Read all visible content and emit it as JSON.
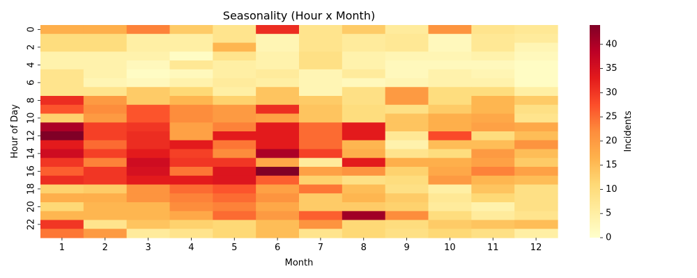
{
  "chart_data": {
    "type": "heatmap",
    "title": "Seasonality (Hour x Month)",
    "xlabel": "Month",
    "ylabel": "Hour of Day",
    "colorbar_label": "Incidents",
    "x": [
      "1",
      "2",
      "3",
      "4",
      "5",
      "6",
      "7",
      "8",
      "9",
      "10",
      "11",
      "12"
    ],
    "y": [
      "0",
      "1",
      "2",
      "3",
      "4",
      "5",
      "6",
      "7",
      "8",
      "9",
      "10",
      "11",
      "12",
      "13",
      "14",
      "15",
      "16",
      "17",
      "18",
      "19",
      "20",
      "21",
      "22",
      "23"
    ],
    "y_tick_labels": [
      "0",
      "2",
      "4",
      "6",
      "8",
      "10",
      "12",
      "14",
      "16",
      "18",
      "20",
      "22"
    ],
    "colorbar_ticks": [
      "0",
      "5",
      "10",
      "15",
      "20",
      "25",
      "30",
      "35",
      "40"
    ],
    "vmin": 0,
    "vmax": 44,
    "colormap": "YlOrRd",
    "values": [
      [
        17,
        17,
        23,
        13,
        8,
        31,
        8,
        13,
        6,
        21,
        8,
        7
      ],
      [
        10,
        10,
        5,
        5,
        8,
        3,
        8,
        6,
        7,
        2,
        7,
        6
      ],
      [
        10,
        10,
        5,
        5,
        16,
        3,
        8,
        6,
        7,
        2,
        7,
        3
      ],
      [
        4,
        4,
        4,
        1,
        8,
        4,
        9,
        4,
        3,
        3,
        4,
        2
      ],
      [
        4,
        4,
        2,
        7,
        5,
        4,
        9,
        4,
        2,
        2,
        2,
        1
      ],
      [
        8,
        4,
        1,
        2,
        5,
        6,
        3,
        6,
        2,
        4,
        3,
        1
      ],
      [
        8,
        3,
        2,
        4,
        6,
        5,
        3,
        2,
        3,
        4,
        4,
        1
      ],
      [
        8,
        8,
        13,
        11,
        5,
        14,
        3,
        9,
        20,
        10,
        10,
        5
      ],
      [
        31,
        20,
        13,
        16,
        12,
        14,
        13,
        9,
        20,
        10,
        16,
        13
      ],
      [
        27,
        22,
        27,
        22,
        20,
        31,
        14,
        10,
        9,
        13,
        16,
        9
      ],
      [
        12,
        20,
        27,
        22,
        20,
        19,
        14,
        10,
        14,
        17,
        18,
        8
      ],
      [
        40,
        29,
        30,
        19,
        23,
        33,
        25,
        33,
        14,
        17,
        19,
        18
      ],
      [
        44,
        29,
        31,
        19,
        33,
        33,
        25,
        33,
        7,
        28,
        10,
        15
      ],
      [
        33,
        25,
        31,
        33,
        24,
        33,
        25,
        16,
        4,
        15,
        15,
        21
      ],
      [
        36,
        29,
        33,
        29,
        22,
        40,
        29,
        17,
        8,
        10,
        20,
        15
      ],
      [
        30,
        23,
        36,
        30,
        30,
        18,
        6,
        33,
        17,
        17,
        19,
        13
      ],
      [
        26,
        30,
        35,
        24,
        34,
        44,
        19,
        21,
        12,
        18,
        23,
        19
      ],
      [
        31,
        30,
        33,
        33,
        34,
        26,
        12,
        9,
        10,
        20,
        16,
        15
      ],
      [
        12,
        13,
        21,
        25,
        27,
        19,
        24,
        15,
        9,
        5,
        14,
        9
      ],
      [
        17,
        17,
        21,
        23,
        25,
        21,
        13,
        16,
        13,
        7,
        11,
        9
      ],
      [
        11,
        16,
        16,
        22,
        23,
        18,
        13,
        13,
        12,
        6,
        4,
        9
      ],
      [
        16,
        16,
        16,
        18,
        25,
        20,
        26,
        41,
        22,
        10,
        6,
        8
      ],
      [
        30,
        8,
        14,
        12,
        11,
        15,
        21,
        11,
        10,
        13,
        14,
        15
      ],
      [
        24,
        20,
        6,
        8,
        11,
        15,
        8,
        11,
        9,
        11,
        9,
        5
      ]
    ]
  }
}
